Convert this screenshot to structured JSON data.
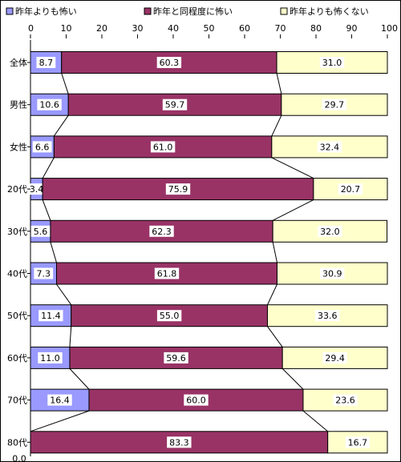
{
  "chart_data": {
    "type": "bar",
    "stacked": "percent",
    "orientation": "horizontal",
    "title": "",
    "xlabel": "",
    "ylabel": "",
    "xlim": [
      0,
      100
    ],
    "x_ticks": [
      "0",
      "10",
      "20",
      "30",
      "40",
      "50",
      "60",
      "70",
      "80",
      "90",
      "100"
    ],
    "legend_position": "top",
    "series_lines": true,
    "grid": false,
    "categories": [
      "全体",
      "男性",
      "女性",
      "20代",
      "30代",
      "40代",
      "50代",
      "60代",
      "70代",
      "80代"
    ],
    "series": [
      {
        "name": "昨年よりも怖い",
        "color": "#9999ff",
        "values": [
          8.7,
          10.6,
          6.6,
          3.4,
          5.6,
          7.3,
          11.4,
          11.0,
          16.4,
          0.0
        ],
        "labels": [
          "8.7",
          "10.6",
          "6.6",
          "3.4",
          "5.6",
          "7.3",
          "11.4",
          "11.0",
          "16.4",
          "0.0"
        ]
      },
      {
        "name": "昨年と同程度に怖い",
        "color": "#993366",
        "values": [
          60.3,
          59.7,
          61.0,
          75.9,
          62.3,
          61.8,
          55.0,
          59.6,
          60.0,
          83.3
        ],
        "labels": [
          "60.3",
          "59.7",
          "61.0",
          "75.9",
          "62.3",
          "61.8",
          "55.0",
          "59.6",
          "60.0",
          "83.3"
        ]
      },
      {
        "name": "昨年よりも怖くない",
        "color": "#ffffcc",
        "values": [
          31.0,
          29.7,
          32.4,
          20.7,
          32.0,
          30.9,
          33.6,
          29.4,
          23.6,
          16.7
        ],
        "labels": [
          "31.0",
          "29.7",
          "32.4",
          "20.7",
          "32.0",
          "30.9",
          "33.6",
          "29.4",
          "23.6",
          "16.7"
        ]
      }
    ]
  }
}
